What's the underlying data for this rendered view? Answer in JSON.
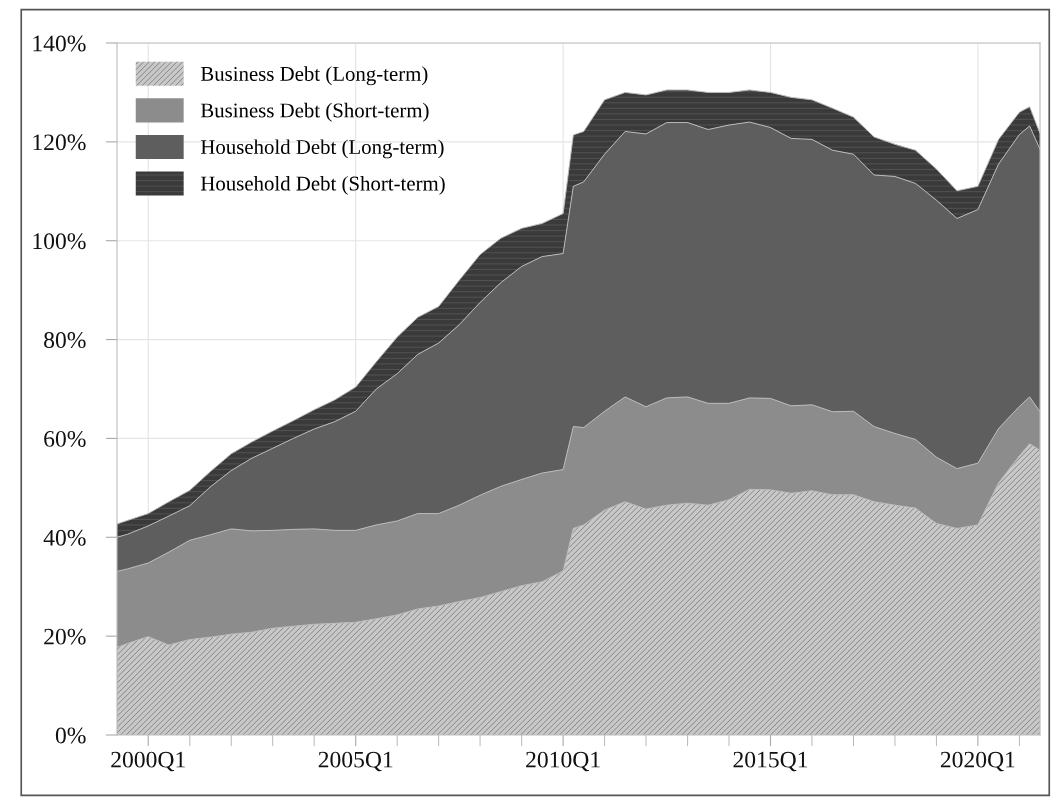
{
  "chart_data": {
    "type": "area",
    "stacked": true,
    "x": [
      "1999-04",
      "1999-07",
      "2000-01",
      "2000-07",
      "2001-01",
      "2001-07",
      "2002-01",
      "2002-07",
      "2003-01",
      "2003-07",
      "2004-01",
      "2004-07",
      "2005-01",
      "2005-07",
      "2006-01",
      "2006-07",
      "2007-01",
      "2007-07",
      "2008-01",
      "2008-07",
      "2009-01",
      "2009-07",
      "2010-01",
      "2010-04",
      "2010-07",
      "2011-01",
      "2011-07",
      "2012-01",
      "2012-07",
      "2013-01",
      "2013-07",
      "2014-01",
      "2014-07",
      "2015-01",
      "2015-07",
      "2016-01",
      "2016-07",
      "2017-01",
      "2017-07",
      "2018-01",
      "2018-07",
      "2019-01",
      "2019-07",
      "2020-01",
      "2020-07",
      "2021-01",
      "2021-04",
      "2021-07"
    ],
    "series": [
      {
        "name": "Business Debt (Long-term)",
        "color": "#c8c8c8",
        "values": [
          17.7,
          18.5,
          19.9,
          18.2,
          19.3,
          19.8,
          20.4,
          20.8,
          21.6,
          22.0,
          22.4,
          22.6,
          22.8,
          23.5,
          24.3,
          25.5,
          26.1,
          27.0,
          27.8,
          29.0,
          30.2,
          31.0,
          33.2,
          41.8,
          42.5,
          45.5,
          47.2,
          45.7,
          46.5,
          46.9,
          46.5,
          47.6,
          49.7,
          49.6,
          48.9,
          49.4,
          48.6,
          48.6,
          47.2,
          46.5,
          45.9,
          42.8,
          41.8,
          42.5,
          51.0,
          56.5,
          58.9,
          57.6
        ]
      },
      {
        "name": "Business Debt (Short-term)",
        "color": "#8c8c8c",
        "values": [
          15.4,
          15.1,
          14.9,
          18.8,
          20.1,
          20.7,
          21.3,
          20.5,
          19.8,
          19.6,
          19.3,
          18.8,
          18.6,
          19.0,
          19.0,
          19.3,
          18.7,
          19.5,
          20.7,
          21.3,
          21.5,
          22.0,
          20.5,
          20.6,
          19.7,
          20.0,
          21.2,
          20.7,
          21.7,
          21.5,
          20.6,
          19.5,
          18.5,
          18.5,
          17.7,
          17.4,
          16.8,
          16.9,
          15.2,
          14.5,
          13.9,
          13.4,
          12.1,
          12.5,
          11.0,
          10.0,
          9.5,
          7.8
        ]
      },
      {
        "name": "Household Debt (Long-term)",
        "color": "#5e5e5e",
        "values": [
          6.9,
          7.0,
          7.5,
          7.3,
          7.0,
          9.7,
          11.8,
          14.7,
          16.6,
          18.4,
          20.2,
          22.0,
          24.1,
          27.5,
          29.8,
          32.2,
          34.5,
          36.5,
          39.0,
          41.2,
          43.1,
          43.8,
          43.7,
          48.6,
          49.7,
          52.0,
          53.7,
          55.2,
          55.7,
          55.5,
          55.4,
          56.3,
          55.8,
          54.8,
          54.1,
          53.7,
          52.9,
          52.0,
          50.9,
          52.0,
          51.8,
          52.0,
          50.6,
          51.3,
          53.5,
          55.0,
          54.8,
          53.1
        ]
      },
      {
        "name": "Household Debt (Short-term)",
        "color": "#3a3a3a",
        "values": [
          2.7,
          2.8,
          2.5,
          2.9,
          3.1,
          3.1,
          3.4,
          3.3,
          3.5,
          3.6,
          3.9,
          4.4,
          4.9,
          5.5,
          7.4,
          7.5,
          7.4,
          9.0,
          9.7,
          9.0,
          7.7,
          6.7,
          8.1,
          10.4,
          10.2,
          11.0,
          7.9,
          7.9,
          6.6,
          6.6,
          7.5,
          6.6,
          6.5,
          7.1,
          8.3,
          8.0,
          8.5,
          7.5,
          7.7,
          6.5,
          6.7,
          6.3,
          5.6,
          4.7,
          5.0,
          4.5,
          3.9,
          3.2
        ]
      }
    ],
    "xlim": [
      "1999-04",
      "2021-07"
    ],
    "xticks": [
      {
        "value": "2000-01",
        "label": "2000Q1"
      },
      {
        "value": "2001-01",
        "label": null
      },
      {
        "value": "2002-01",
        "label": null
      },
      {
        "value": "2003-01",
        "label": null
      },
      {
        "value": "2004-01",
        "label": null
      },
      {
        "value": "2005-01",
        "label": "2005Q1"
      },
      {
        "value": "2006-01",
        "label": null
      },
      {
        "value": "2007-01",
        "label": null
      },
      {
        "value": "2008-01",
        "label": null
      },
      {
        "value": "2009-01",
        "label": null
      },
      {
        "value": "2010-01",
        "label": "2010Q1"
      },
      {
        "value": "2011-01",
        "label": null
      },
      {
        "value": "2012-01",
        "label": null
      },
      {
        "value": "2013-01",
        "label": null
      },
      {
        "value": "2014-01",
        "label": null
      },
      {
        "value": "2015-01",
        "label": "2015Q1"
      },
      {
        "value": "2016-01",
        "label": null
      },
      {
        "value": "2017-01",
        "label": null
      },
      {
        "value": "2018-01",
        "label": null
      },
      {
        "value": "2019-01",
        "label": null
      },
      {
        "value": "2020-01",
        "label": "2020Q1"
      },
      {
        "value": "2021-01",
        "label": null
      }
    ],
    "ylim": [
      0,
      140
    ],
    "yticks": [
      {
        "value": 0,
        "label": "0%"
      },
      {
        "value": 20,
        "label": "20%"
      },
      {
        "value": 40,
        "label": "40%"
      },
      {
        "value": 60,
        "label": "60%"
      },
      {
        "value": 80,
        "label": "80%"
      },
      {
        "value": 100,
        "label": "100%"
      },
      {
        "value": 120,
        "label": "120%"
      },
      {
        "value": 140,
        "label": "140%"
      }
    ],
    "grid": true,
    "legend": "top left"
  }
}
